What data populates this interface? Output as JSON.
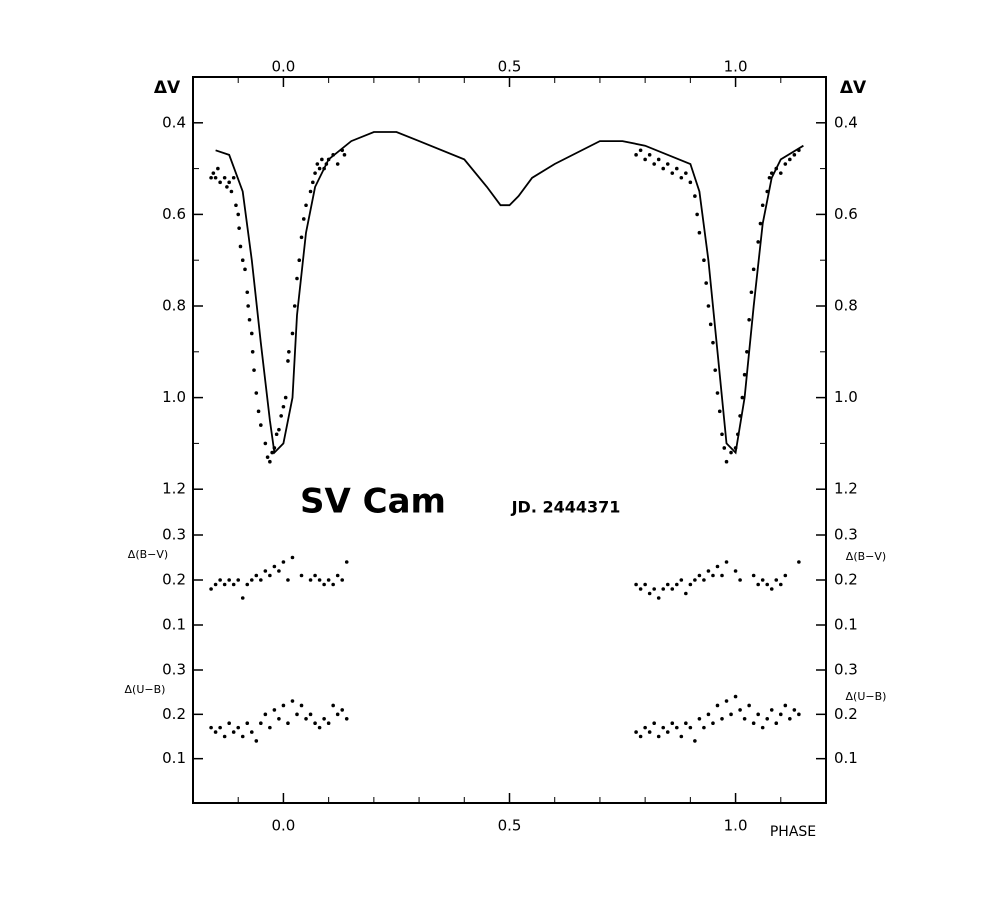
{
  "chart_data": [
    {
      "type": "scatter",
      "title": "SV Cam",
      "subtitle": "JD. 2444371",
      "ylabel": "ΔV",
      "xlim": [
        -0.2,
        1.2
      ],
      "xticks": [
        {
          "value": 0,
          "label": "0.0"
        },
        0.5,
        {
          "value": 1,
          "label": "1.0"
        }
      ],
      "xminorticks": [
        -0.1,
        0.1,
        0.2,
        0.3,
        0.4,
        0.6,
        0.7,
        0.8,
        0.9,
        1.1
      ],
      "ylim": [
        0.3,
        1.3
      ],
      "inverted": true,
      "yticks": [
        0.4,
        0.6,
        0.8,
        {
          "value": 1,
          "label": "1.0"
        },
        1.2
      ],
      "yminorticks": [
        0.5,
        0.7,
        0.9,
        1.1
      ],
      "series": [
        {
          "style": "line",
          "color": "#000000",
          "x": [
            -0.15,
            -0.12,
            -0.09,
            -0.07,
            -0.05,
            -0.03,
            -0.02,
            0.0,
            0.02,
            0.03,
            0.05,
            0.07,
            0.1,
            0.15,
            0.2,
            0.25,
            0.3,
            0.4,
            0.45,
            0.48,
            0.5,
            0.52,
            0.55,
            0.6,
            0.7,
            0.75,
            0.8,
            0.9,
            0.92,
            0.94,
            0.96,
            0.98,
            1.0,
            1.02,
            1.04,
            1.06,
            1.08,
            1.1,
            1.15
          ],
          "values": [
            0.46,
            0.47,
            0.55,
            0.7,
            0.88,
            1.05,
            1.12,
            1.1,
            1.0,
            0.82,
            0.64,
            0.54,
            0.48,
            0.44,
            0.42,
            0.42,
            0.44,
            0.48,
            0.54,
            0.58,
            0.58,
            0.56,
            0.52,
            0.49,
            0.44,
            0.44,
            0.45,
            0.49,
            0.55,
            0.7,
            0.9,
            1.1,
            1.12,
            1.0,
            0.8,
            0.62,
            0.52,
            0.48,
            0.45
          ]
        },
        {
          "style": "points",
          "color": "#000000",
          "x": [
            -0.16,
            -0.155,
            -0.15,
            -0.145,
            -0.14,
            -0.13,
            -0.125,
            -0.12,
            -0.115,
            -0.11,
            -0.105,
            -0.1,
            -0.098,
            -0.095,
            -0.09,
            -0.085,
            -0.08,
            -0.078,
            -0.075,
            -0.07,
            -0.068,
            -0.065,
            -0.06,
            -0.055,
            -0.05,
            -0.04,
            -0.035,
            -0.03,
            -0.025,
            -0.02,
            -0.015,
            -0.01,
            -0.005,
            0.0,
            0.005,
            0.01,
            0.012,
            0.02,
            0.025,
            0.03,
            0.035,
            0.04,
            0.045,
            0.05,
            0.06,
            0.065,
            0.07,
            0.075,
            0.08,
            0.085,
            0.09,
            0.095,
            0.1,
            0.11,
            0.12,
            0.13,
            0.135,
            0.78,
            0.79,
            0.8,
            0.81,
            0.82,
            0.83,
            0.84,
            0.85,
            0.86,
            0.87,
            0.88,
            0.89,
            0.9,
            0.91,
            0.915,
            0.92,
            0.93,
            0.935,
            0.94,
            0.945,
            0.95,
            0.955,
            0.96,
            0.965,
            0.97,
            0.975,
            0.98,
            0.99,
            1.0,
            1.005,
            1.01,
            1.015,
            1.02,
            1.025,
            1.03,
            1.035,
            1.04,
            1.05,
            1.055,
            1.06,
            1.07,
            1.075,
            1.08,
            1.09,
            1.1,
            1.11,
            1.12,
            1.13,
            1.14
          ],
          "values": [
            0.52,
            0.51,
            0.52,
            0.5,
            0.53,
            0.52,
            0.54,
            0.53,
            0.55,
            0.52,
            0.58,
            0.6,
            0.63,
            0.67,
            0.7,
            0.72,
            0.77,
            0.8,
            0.83,
            0.86,
            0.9,
            0.94,
            0.99,
            1.03,
            1.06,
            1.1,
            1.13,
            1.14,
            1.12,
            1.11,
            1.08,
            1.07,
            1.04,
            1.02,
            1.0,
            0.92,
            0.9,
            0.86,
            0.8,
            0.74,
            0.7,
            0.65,
            0.61,
            0.58,
            0.55,
            0.53,
            0.51,
            0.49,
            0.5,
            0.48,
            0.5,
            0.49,
            0.48,
            0.47,
            0.49,
            0.46,
            0.47,
            0.47,
            0.46,
            0.48,
            0.47,
            0.49,
            0.48,
            0.5,
            0.49,
            0.51,
            0.5,
            0.52,
            0.51,
            0.53,
            0.56,
            0.6,
            0.64,
            0.7,
            0.75,
            0.8,
            0.84,
            0.88,
            0.94,
            0.99,
            1.03,
            1.08,
            1.11,
            1.14,
            1.12,
            1.11,
            1.08,
            1.04,
            1.0,
            0.95,
            0.9,
            0.83,
            0.77,
            0.72,
            0.66,
            0.62,
            0.58,
            0.55,
            0.52,
            0.51,
            0.5,
            0.51,
            0.49,
            0.48,
            0.47,
            0.46
          ]
        }
      ]
    },
    {
      "type": "scatter",
      "ylabel": "Δ(B−V)",
      "ylim": [
        0,
        0.3
      ],
      "yticks": [
        0.1,
        0.2,
        0.3
      ],
      "series": [
        {
          "style": "points",
          "color": "#000000",
          "x": [
            -0.16,
            -0.15,
            -0.14,
            -0.13,
            -0.12,
            -0.11,
            -0.1,
            -0.09,
            -0.08,
            -0.07,
            -0.06,
            -0.05,
            -0.04,
            -0.03,
            -0.02,
            -0.01,
            0.0,
            0.01,
            0.02,
            0.04,
            0.06,
            0.07,
            0.08,
            0.09,
            0.1,
            0.11,
            0.12,
            0.13,
            0.14,
            0.78,
            0.79,
            0.8,
            0.81,
            0.82,
            0.83,
            0.84,
            0.85,
            0.86,
            0.87,
            0.88,
            0.89,
            0.9,
            0.91,
            0.92,
            0.93,
            0.94,
            0.95,
            0.96,
            0.97,
            0.98,
            1.0,
            1.01,
            1.04,
            1.05,
            1.06,
            1.07,
            1.08,
            1.09,
            1.1,
            1.11,
            1.14
          ],
          "values": [
            0.18,
            0.19,
            0.2,
            0.19,
            0.2,
            0.19,
            0.2,
            0.16,
            0.19,
            0.2,
            0.21,
            0.2,
            0.22,
            0.21,
            0.23,
            0.22,
            0.24,
            0.2,
            0.25,
            0.21,
            0.2,
            0.21,
            0.2,
            0.19,
            0.2,
            0.19,
            0.21,
            0.2,
            0.24,
            0.19,
            0.18,
            0.19,
            0.17,
            0.18,
            0.16,
            0.18,
            0.19,
            0.18,
            0.19,
            0.2,
            0.17,
            0.19,
            0.2,
            0.21,
            0.2,
            0.22,
            0.21,
            0.23,
            0.21,
            0.24,
            0.22,
            0.2,
            0.21,
            0.19,
            0.2,
            0.19,
            0.18,
            0.2,
            0.19,
            0.21,
            0.24
          ]
        }
      ]
    },
    {
      "type": "scatter",
      "ylabel": "Δ(U−B)",
      "xlabel": "PHASE",
      "ylim": [
        0,
        0.3
      ],
      "yticks": [
        0.1,
        0.2,
        0.3
      ],
      "series": [
        {
          "style": "points",
          "color": "#000000",
          "x": [
            -0.16,
            -0.15,
            -0.14,
            -0.13,
            -0.12,
            -0.11,
            -0.1,
            -0.09,
            -0.08,
            -0.07,
            -0.06,
            -0.05,
            -0.04,
            -0.03,
            -0.02,
            -0.01,
            0.0,
            0.01,
            0.02,
            0.03,
            0.04,
            0.05,
            0.06,
            0.07,
            0.08,
            0.09,
            0.1,
            0.11,
            0.12,
            0.13,
            0.14,
            0.78,
            0.79,
            0.8,
            0.81,
            0.82,
            0.83,
            0.84,
            0.85,
            0.86,
            0.87,
            0.88,
            0.89,
            0.9,
            0.91,
            0.92,
            0.93,
            0.94,
            0.95,
            0.96,
            0.97,
            0.98,
            0.99,
            1.0,
            1.01,
            1.02,
            1.03,
            1.04,
            1.05,
            1.06,
            1.07,
            1.08,
            1.09,
            1.1,
            1.11,
            1.12,
            1.13,
            1.14
          ],
          "values": [
            0.17,
            0.16,
            0.17,
            0.15,
            0.18,
            0.16,
            0.17,
            0.15,
            0.18,
            0.16,
            0.14,
            0.18,
            0.2,
            0.17,
            0.21,
            0.19,
            0.22,
            0.18,
            0.23,
            0.2,
            0.22,
            0.19,
            0.2,
            0.18,
            0.17,
            0.19,
            0.18,
            0.22,
            0.2,
            0.21,
            0.19,
            0.16,
            0.15,
            0.17,
            0.16,
            0.18,
            0.15,
            0.17,
            0.16,
            0.18,
            0.17,
            0.15,
            0.18,
            0.17,
            0.14,
            0.19,
            0.17,
            0.2,
            0.18,
            0.22,
            0.19,
            0.23,
            0.2,
            0.24,
            0.21,
            0.19,
            0.22,
            0.18,
            0.2,
            0.17,
            0.19,
            0.21,
            0.18,
            0.2,
            0.22,
            0.19,
            0.21,
            0.2
          ]
        }
      ]
    }
  ]
}
